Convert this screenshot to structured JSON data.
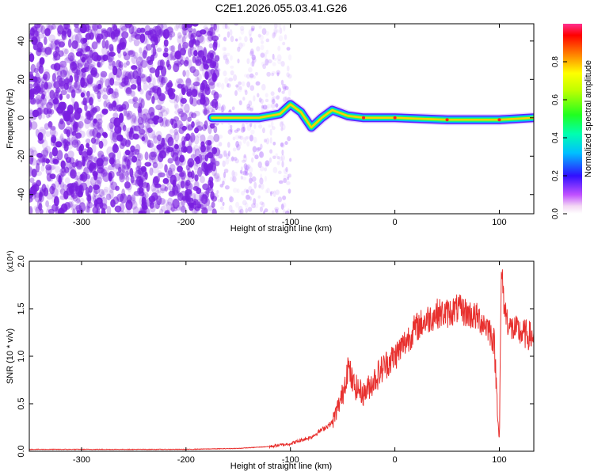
{
  "title": "C2E1.2026.055.03.41.G26",
  "colors": {
    "snr_line": "#e8302e",
    "spectrogram_noise": "#7a1fe0",
    "frame": "#000000"
  },
  "chart_data": [
    {
      "id": "spectrogram",
      "type": "heatmap",
      "xlabel": "Height of straight line (km)",
      "ylabel": "Frequency (Hz)",
      "xlim": [
        -350,
        133
      ],
      "ylim": [
        -50,
        49
      ],
      "xticks": [
        -300,
        -200,
        -100,
        0,
        100
      ],
      "xtick_labels": [
        "-300",
        "-200",
        "-100",
        "0",
        "100"
      ],
      "yticks": [
        -40,
        -20,
        0,
        20,
        40
      ],
      "ytick_labels": [
        "-40",
        "-20",
        "0",
        "20",
        "40"
      ],
      "colorbar": {
        "label": "Normalized spectral amplitude",
        "range": [
          0,
          1
        ],
        "ticks": [
          0,
          0.2,
          0.4,
          0.6,
          0.8
        ],
        "tick_labels": [
          "0.0",
          "0.2",
          "0.4",
          "0.6",
          "0.8"
        ],
        "colormap": "rainbow (magenta-blue-cyan-green-yellow-red)"
      },
      "features": {
        "noise_region_x": [
          -350,
          -170
        ],
        "sparse_noise_region_x": [
          -170,
          -100
        ],
        "signal_track": [
          {
            "x": -175,
            "y": 0
          },
          {
            "x": -130,
            "y": 0
          },
          {
            "x": -110,
            "y": 2
          },
          {
            "x": -100,
            "y": 7
          },
          {
            "x": -90,
            "y": 3
          },
          {
            "x": -80,
            "y": -5
          },
          {
            "x": -70,
            "y": 0
          },
          {
            "x": -60,
            "y": 4
          },
          {
            "x": -45,
            "y": 1
          },
          {
            "x": -30,
            "y": 0
          },
          {
            "x": 0,
            "y": 0
          },
          {
            "x": 50,
            "y": -1
          },
          {
            "x": 100,
            "y": -1
          },
          {
            "x": 133,
            "y": 0
          }
        ]
      }
    },
    {
      "id": "snr",
      "type": "line",
      "xlabel": "Height of straight line (km)",
      "ylabel": "SNR (10 * v/v)",
      "y_multiplier": "(x10⁴)",
      "xlim": [
        -350,
        133
      ],
      "ylim": [
        0,
        2.0
      ],
      "xticks": [
        -300,
        -200,
        -100,
        0,
        100
      ],
      "xtick_labels": [
        "-300",
        "-200",
        "-100",
        "0",
        "100"
      ],
      "yticks": [
        0,
        0.5,
        1.0,
        1.5,
        2.0
      ],
      "ytick_labels": [
        "0.0",
        "0.5",
        "1.0",
        "1.5",
        "2.0"
      ],
      "series": [
        {
          "color": "#e8302e",
          "x": [
            -350,
            -300,
            -250,
            -200,
            -150,
            -120,
            -100,
            -80,
            -60,
            -50,
            -45,
            -40,
            -30,
            -20,
            -10,
            0,
            10,
            20,
            30,
            40,
            50,
            60,
            70,
            80,
            90,
            95,
            100,
            102,
            105,
            110,
            120,
            133
          ],
          "y": [
            0.02,
            0.02,
            0.02,
            0.02,
            0.03,
            0.05,
            0.08,
            0.15,
            0.3,
            0.6,
            0.9,
            0.7,
            0.6,
            0.75,
            0.9,
            1.0,
            1.15,
            1.3,
            1.38,
            1.45,
            1.45,
            1.5,
            1.45,
            1.4,
            1.3,
            1.15,
            0.1,
            1.9,
            1.5,
            1.3,
            1.25,
            1.2
          ]
        }
      ]
    }
  ]
}
